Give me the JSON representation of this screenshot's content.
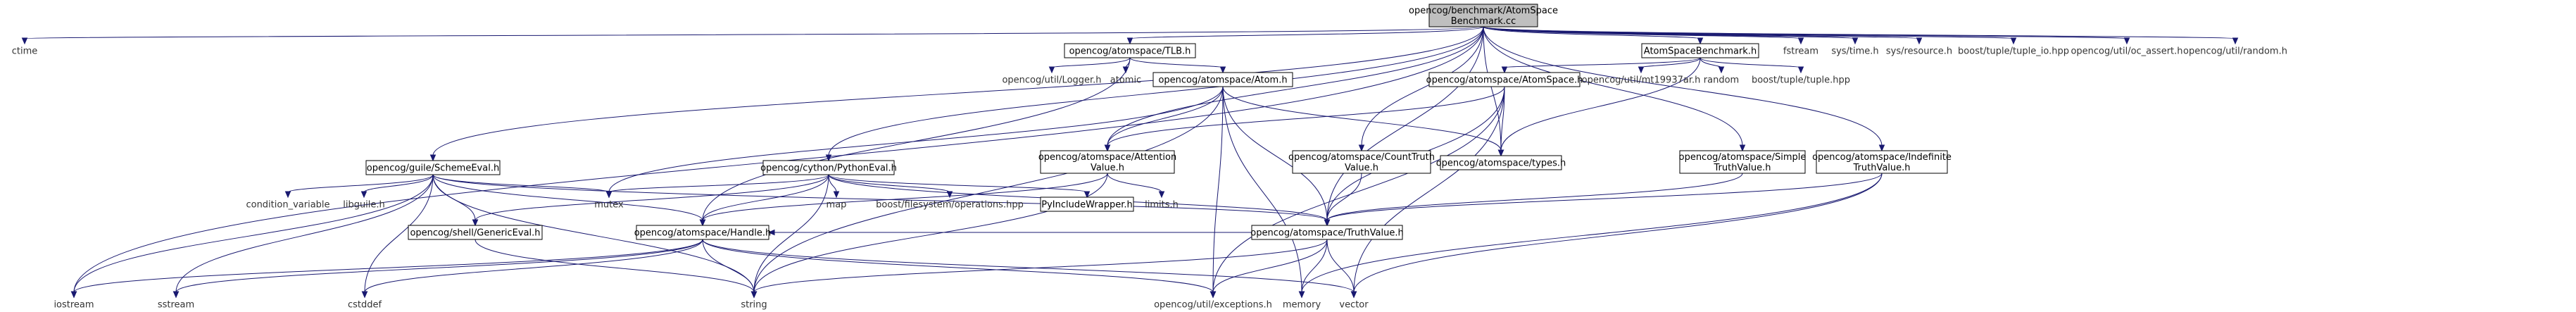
{
  "title": "opencog/benchmark/AtomSpaceBenchmark.cc",
  "colors": {
    "root_fill": "#bfbfbf",
    "box_fill": "#ffffff",
    "red_border": "#ff0000",
    "black_border": "#000000",
    "edge": "#191970"
  },
  "nodes": {
    "root": {
      "lines": [
        "opencog/benchmark/AtomSpace",
        "Benchmark.cc"
      ],
      "kind": "root"
    },
    "ctime": {
      "lines": [
        "ctime"
      ],
      "kind": "plain"
    },
    "iostream": {
      "lines": [
        "iostream"
      ],
      "kind": "plain"
    },
    "tlb": {
      "lines": [
        "opencog/atomspace/TLB.h"
      ],
      "kind": "box"
    },
    "logger": {
      "lines": [
        "opencog/util/Logger.h"
      ],
      "kind": "plain"
    },
    "atomic": {
      "lines": [
        "atomic"
      ],
      "kind": "plain"
    },
    "atom": {
      "lines": [
        "opencog/atomspace/Atom.h"
      ],
      "kind": "red"
    },
    "asbench": {
      "lines": [
        "AtomSpaceBenchmark.h"
      ],
      "kind": "box"
    },
    "atomspace": {
      "lines": [
        "opencog/atomspace/AtomSpace.h"
      ],
      "kind": "red"
    },
    "mt19937": {
      "lines": [
        "opencog/util/mt19937ar.h"
      ],
      "kind": "plain"
    },
    "random": {
      "lines": [
        "random"
      ],
      "kind": "plain"
    },
    "tuplehpp": {
      "lines": [
        "boost/tuple/tuple.hpp"
      ],
      "kind": "plain"
    },
    "fstream": {
      "lines": [
        "fstream"
      ],
      "kind": "plain"
    },
    "systime": {
      "lines": [
        "sys/time.h"
      ],
      "kind": "plain"
    },
    "sysres": {
      "lines": [
        "sys/resource.h"
      ],
      "kind": "plain"
    },
    "tupleio": {
      "lines": [
        "boost/tuple/tuple_io.hpp"
      ],
      "kind": "plain"
    },
    "ocassert": {
      "lines": [
        "opencog/util/oc_assert.h"
      ],
      "kind": "plain"
    },
    "ocrandom": {
      "lines": [
        "opencog/util/random.h"
      ],
      "kind": "plain"
    },
    "scheme": {
      "lines": [
        "opencog/guile/SchemeEval.h"
      ],
      "kind": "box"
    },
    "python": {
      "lines": [
        "opencog/cython/PythonEval.h"
      ],
      "kind": "box"
    },
    "attn": {
      "lines": [
        "opencog/atomspace/Attention",
        "Value.h"
      ],
      "kind": "box"
    },
    "counttv": {
      "lines": [
        "opencog/atomspace/CountTruth",
        "Value.h"
      ],
      "kind": "box"
    },
    "types": {
      "lines": [
        "opencog/atomspace/types.h"
      ],
      "kind": "box"
    },
    "simpletv": {
      "lines": [
        "opencog/atomspace/Simple",
        "TruthValue.h"
      ],
      "kind": "box"
    },
    "indeftv": {
      "lines": [
        "opencog/atomspace/Indefinite",
        "TruthValue.h"
      ],
      "kind": "box"
    },
    "condvar": {
      "lines": [
        "condition_variable"
      ],
      "kind": "plain"
    },
    "libguile": {
      "lines": [
        "libguile.h"
      ],
      "kind": "plain"
    },
    "generic": {
      "lines": [
        "opencog/shell/GenericEval.h"
      ],
      "kind": "box"
    },
    "mutex": {
      "lines": [
        "mutex"
      ],
      "kind": "plain"
    },
    "handle": {
      "lines": [
        "opencog/atomspace/Handle.h"
      ],
      "kind": "red"
    },
    "map": {
      "lines": [
        "map"
      ],
      "kind": "plain"
    },
    "boostfs": {
      "lines": [
        "boost/filesystem/operations.hpp"
      ],
      "kind": "plain"
    },
    "pyinc": {
      "lines": [
        "PyIncludeWrapper.h"
      ],
      "kind": "red"
    },
    "limits": {
      "lines": [
        "limits.h"
      ],
      "kind": "plain"
    },
    "truthvalue": {
      "lines": [
        "opencog/atomspace/TruthValue.h"
      ],
      "kind": "box"
    },
    "sstream": {
      "lines": [
        "sstream"
      ],
      "kind": "plain"
    },
    "cstddef": {
      "lines": [
        "cstddef"
      ],
      "kind": "plain"
    },
    "string": {
      "lines": [
        "string"
      ],
      "kind": "plain"
    },
    "exceptions": {
      "lines": [
        "opencog/util/exceptions.h"
      ],
      "kind": "plain"
    },
    "memory": {
      "lines": [
        "memory"
      ],
      "kind": "plain"
    },
    "vector": {
      "lines": [
        "vector"
      ],
      "kind": "plain"
    }
  },
  "edges": [
    [
      "root",
      "ctime"
    ],
    [
      "root",
      "iostream"
    ],
    [
      "root",
      "tlb"
    ],
    [
      "root",
      "asbench"
    ],
    [
      "root",
      "fstream"
    ],
    [
      "root",
      "systime"
    ],
    [
      "root",
      "sysres"
    ],
    [
      "root",
      "tupleio"
    ],
    [
      "root",
      "ocassert"
    ],
    [
      "root",
      "ocrandom"
    ],
    [
      "root",
      "scheme"
    ],
    [
      "root",
      "python"
    ],
    [
      "root",
      "attn"
    ],
    [
      "root",
      "counttv"
    ],
    [
      "root",
      "types"
    ],
    [
      "root",
      "simpletv"
    ],
    [
      "root",
      "indeftv"
    ],
    [
      "root",
      "truthvalue"
    ],
    [
      "tlb",
      "logger"
    ],
    [
      "tlb",
      "atomic"
    ],
    [
      "tlb",
      "atom"
    ],
    [
      "tlb",
      "handle"
    ],
    [
      "atom",
      "attn"
    ],
    [
      "atom",
      "types"
    ],
    [
      "atom",
      "truthvalue"
    ],
    [
      "atom",
      "mutex"
    ],
    [
      "atom",
      "string"
    ],
    [
      "atom",
      "exceptions"
    ],
    [
      "atom",
      "memory"
    ],
    [
      "asbench",
      "atomspace"
    ],
    [
      "asbench",
      "mt19937"
    ],
    [
      "asbench",
      "random"
    ],
    [
      "asbench",
      "tuplehpp"
    ],
    [
      "asbench",
      "types"
    ],
    [
      "atomspace",
      "attn"
    ],
    [
      "atomspace",
      "types"
    ],
    [
      "atomspace",
      "truthvalue"
    ],
    [
      "atomspace",
      "exceptions"
    ],
    [
      "atomspace",
      "vector"
    ],
    [
      "scheme",
      "condvar"
    ],
    [
      "scheme",
      "libguile"
    ],
    [
      "scheme",
      "generic"
    ],
    [
      "scheme",
      "mutex"
    ],
    [
      "scheme",
      "handle"
    ],
    [
      "scheme",
      "iostream"
    ],
    [
      "scheme",
      "sstream"
    ],
    [
      "scheme",
      "cstddef"
    ],
    [
      "scheme",
      "string"
    ],
    [
      "scheme",
      "truthvalue"
    ],
    [
      "python",
      "mutex"
    ],
    [
      "python",
      "map"
    ],
    [
      "python",
      "boostfs"
    ],
    [
      "python",
      "pyinc"
    ],
    [
      "python",
      "generic"
    ],
    [
      "python",
      "handle"
    ],
    [
      "python",
      "string"
    ],
    [
      "python",
      "truthvalue"
    ],
    [
      "attn",
      "limits"
    ],
    [
      "attn",
      "handle"
    ],
    [
      "attn",
      "string"
    ],
    [
      "counttv",
      "truthvalue"
    ],
    [
      "simpletv",
      "truthvalue"
    ],
    [
      "indeftv",
      "truthvalue"
    ],
    [
      "indeftv",
      "vector"
    ],
    [
      "indeftv",
      "memory"
    ],
    [
      "generic",
      "string"
    ],
    [
      "handle",
      "iostream"
    ],
    [
      "handle",
      "sstream"
    ],
    [
      "handle",
      "cstddef"
    ],
    [
      "handle",
      "string"
    ],
    [
      "handle",
      "vector"
    ],
    [
      "handle",
      "exceptions"
    ],
    [
      "truthvalue",
      "exceptions"
    ],
    [
      "truthvalue",
      "memory"
    ],
    [
      "truthvalue",
      "vector"
    ],
    [
      "truthvalue",
      "string"
    ],
    [
      "truthvalue",
      "handle"
    ]
  ]
}
